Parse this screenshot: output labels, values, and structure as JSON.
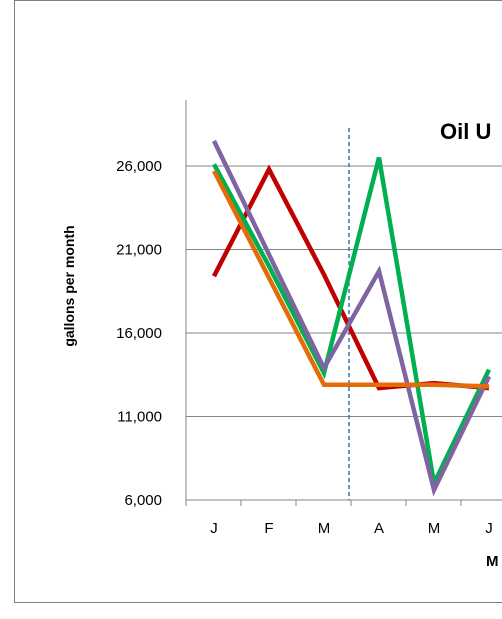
{
  "chart_data": {
    "type": "line",
    "title": "Oil U",
    "xlabel": "M",
    "ylabel": "gallons per month",
    "categories": [
      "J",
      "F",
      "M",
      "A",
      "M",
      "J"
    ],
    "ylim": [
      6000,
      26000
    ],
    "yticks": [
      "26,000",
      "21,000",
      "16,000",
      "11,000",
      "6,000"
    ],
    "grid": true,
    "marker_line": {
      "between": [
        "M",
        "A"
      ],
      "style": "dashed",
      "color": "#2e75b6"
    },
    "series": [
      {
        "color": "#c00000",
        "values": [
          19400,
          25800,
          19500,
          12700,
          13000,
          12700
        ]
      },
      {
        "color": "#00b050",
        "values": [
          26100,
          20000,
          13600,
          26500,
          7000,
          13800
        ]
      },
      {
        "color": "#8064a2",
        "values": [
          27500,
          20700,
          13900,
          19700,
          6600,
          13400
        ]
      },
      {
        "color": "#e36c09",
        "values": [
          25700,
          19300,
          12900,
          12900,
          12900,
          12800
        ]
      }
    ]
  }
}
